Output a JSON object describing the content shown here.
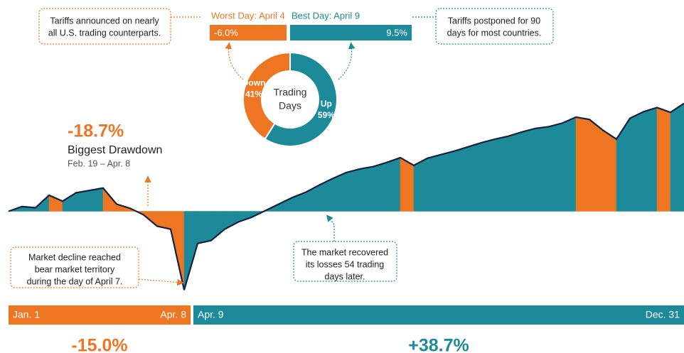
{
  "chart_data": [
    {
      "type": "area",
      "values": [
        0,
        0.8,
        0.6,
        2.7,
        1.7,
        3.1,
        3.5,
        3.9,
        1.2,
        0.5,
        -0.6,
        -2.5,
        -3.0,
        -13.2,
        -5.4,
        -4.9,
        -3.0,
        -1.8,
        -1.0,
        0.1,
        1.2,
        2.3,
        3.2,
        4.4,
        5.5,
        6.5,
        7.1,
        7.5,
        8.2,
        9.0,
        7.7,
        8.9,
        9.5,
        10.1,
        10.8,
        11.5,
        12.1,
        12.6,
        13.3,
        13.9,
        14.2,
        14.8,
        15.8,
        15.4,
        13.6,
        12.1,
        15.6,
        16.7,
        17.4,
        16.6,
        18.1
      ],
      "segment_colors": [
        "#1d8a99",
        "#1d8a99",
        "#1d8a99",
        "#ee7623",
        "#1d8a99",
        "#1d8a99",
        "#1d8a99",
        "#ee7623",
        "#ee7623",
        "#ee7623",
        "#ee7623",
        "#ee7623",
        "#ee7623",
        "#1d8a99",
        "#1d8a99",
        "#1d8a99",
        "#1d8a99",
        "#1d8a99",
        "#1d8a99",
        "#1d8a99",
        "#1d8a99",
        "#1d8a99",
        "#1d8a99",
        "#1d8a99",
        "#1d8a99",
        "#1d8a99",
        "#1d8a99",
        "#1d8a99",
        "#1d8a99",
        "#ee7623",
        "#1d8a99",
        "#1d8a99",
        "#1d8a99",
        "#1d8a99",
        "#1d8a99",
        "#1d8a99",
        "#1d8a99",
        "#1d8a99",
        "#1d8a99",
        "#1d8a99",
        "#1d8a99",
        "#1d8a99",
        "#ee7623",
        "#ee7623",
        "#ee7623",
        "#1d8a99",
        "#1d8a99",
        "#1d8a99",
        "#ee7623",
        "#1d8a99"
      ],
      "line_color": "#16223f",
      "ylim": [
        -14,
        19
      ]
    },
    {
      "type": "pie",
      "title_lines": [
        "Trading",
        "Days"
      ],
      "categories": [
        "Down",
        "Up"
      ],
      "values": [
        41,
        59
      ],
      "value_labels": [
        "41%",
        "59%"
      ],
      "colors": [
        "#ee7623",
        "#1d8a99"
      ]
    },
    {
      "type": "bar",
      "categories": [
        "Worst Day: April 4",
        "Best Day: April 9"
      ],
      "values": [
        -6.0,
        9.5
      ],
      "value_labels": [
        "-6.0%",
        "9.5%"
      ],
      "colors": [
        "#ee7623",
        "#1d8a99"
      ]
    }
  ],
  "drawdown": {
    "value_label": "-18.7%",
    "title": "Biggest Drawdown",
    "dates": "Feb. 19 – Apr. 8"
  },
  "annotations": [
    {
      "lines": [
        "Tariffs announced on nearly",
        "all U.S. trading counterparts."
      ]
    },
    {
      "lines": [
        "Tariffs postponed for 90",
        "days for most countries."
      ]
    },
    {
      "lines": [
        "Market decline reached",
        "bear market territory",
        "during the day of April 7."
      ]
    },
    {
      "lines": [
        "The market recovered",
        "its losses 54 trading",
        "days later."
      ]
    }
  ],
  "periods": [
    {
      "start": "Jan. 1",
      "end": "Apr. 8",
      "return_label": "-15.0%",
      "color": "#ee7623"
    },
    {
      "start": "Apr. 9",
      "end": "Dec. 31",
      "return_label": "+38.7%",
      "color": "#1d8a99"
    }
  ]
}
